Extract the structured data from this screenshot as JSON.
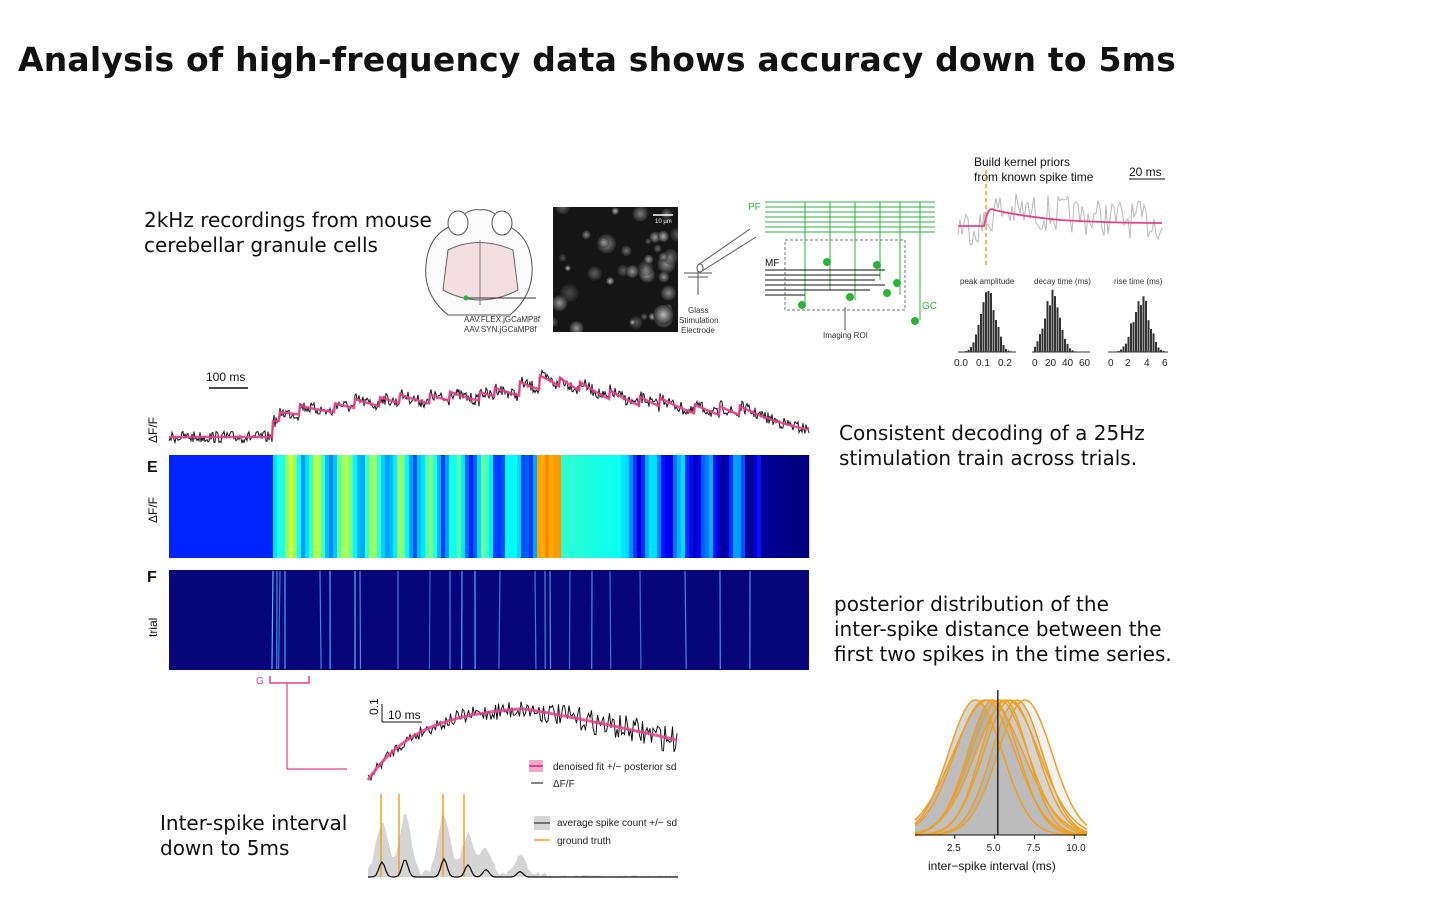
{
  "title": "Analysis of high-frequency data shows accuracy down to 5ms",
  "captions": {
    "recordings": "2kHz recordings from mouse\ncerebellar granule cells",
    "decoding": "Consistent decoding of a 25Hz\nstimulation train across trials.",
    "posterior": "posterior distribution of the\ninter-spike distance between the\nfirst two spikes in the time series.",
    "isi": "Inter-spike interval\ndown to 5ms"
  },
  "brain_labels": [
    "AAV.FLEX.jGCaMP8f",
    "AAV.SYN.jGCaMP8f"
  ],
  "microscopy_scale": "10 µm",
  "electrode_label": [
    "Glass",
    "Stimulation",
    "Electrode"
  ],
  "circuit_labels": {
    "pf": "PF",
    "mf": "MF",
    "gc": "GC",
    "roi": "Imaging ROI"
  },
  "kernel": {
    "title_line1": "Build kernel priors",
    "title_line2": "from known spike time",
    "scale": "20 ms",
    "hist_titles": [
      "peak amplitude",
      "decay time (ms)",
      "rise time (ms)"
    ],
    "hist_ticks": [
      [
        "0.0",
        "0.1",
        "0.2"
      ],
      [
        "0",
        "20",
        "40",
        "60"
      ],
      [
        "0",
        "2",
        "4",
        "6"
      ]
    ]
  },
  "trace_panel": {
    "scale": "100 ms",
    "ylabel": "ΔF/F",
    "letter_e": "E",
    "ylabel_e": "ΔF/F",
    "letter_f": "F",
    "ylabel_f": "trial"
  },
  "zoom_panel": {
    "g_label": "G",
    "yscale": "0.1",
    "xscale": "10 ms",
    "legend": [
      "denoised fit +/− posterior sd",
      "ΔF/F",
      "average spike count +/− sd",
      "ground truth"
    ]
  },
  "chart_data": {
    "type": "line",
    "title": "",
    "xlabel": "inter−spike interval (ms)",
    "ylabel": "",
    "xticks": [
      "2.5",
      "5.0",
      "7.5",
      "10.0"
    ],
    "xlim": [
      0,
      10.8
    ],
    "reference_line": 5.2,
    "colors": {
      "curves": "#f0a020",
      "fill": "#8c8c8c",
      "fill_light": "#d9d9d9"
    },
    "series": [
      {
        "mean": 3.8,
        "sd": 1.7
      },
      {
        "mean": 4.4,
        "sd": 1.9
      },
      {
        "mean": 4.9,
        "sd": 1.6
      },
      {
        "mean": 5.3,
        "sd": 1.8
      },
      {
        "mean": 5.6,
        "sd": 1.5
      },
      {
        "mean": 6.0,
        "sd": 1.7
      },
      {
        "mean": 6.4,
        "sd": 1.6
      },
      {
        "mean": 6.9,
        "sd": 1.7
      },
      {
        "mean": 4.6,
        "sd": 2.2
      },
      {
        "mean": 5.8,
        "sd": 2.0
      }
    ]
  }
}
